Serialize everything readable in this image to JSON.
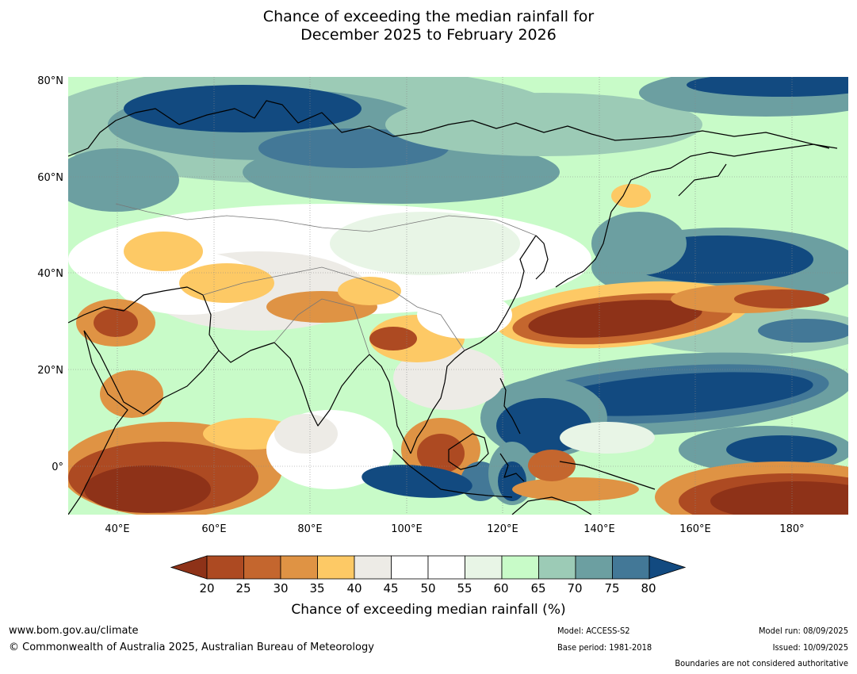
{
  "title": {
    "line1": "Chance of exceeding the median rainfall for",
    "line2": "December 2025 to February 2026"
  },
  "map": {
    "lat_labels": [
      "80°N",
      "60°N",
      "40°N",
      "20°N",
      "0°"
    ],
    "lon_labels": [
      "40°E",
      "60°E",
      "80°E",
      "100°E",
      "120°E",
      "140°E",
      "160°E",
      "180°"
    ],
    "colors": {
      "p15": "#8e3218",
      "p20": "#ad4a22",
      "p25": "#c4662e",
      "p30": "#df9344",
      "p35": "#fdc965",
      "p40": "#edebe6",
      "p45": "#ffffff",
      "p50": "#ffffff",
      "p55": "#e8f5e6",
      "p60": "#c8fbc8",
      "p65": "#9ccbb6",
      "p70": "#6c9fa1",
      "p75": "#437897",
      "p80": "#124a80"
    }
  },
  "colorbar": {
    "ticks": [
      "20",
      "25",
      "30",
      "35",
      "40",
      "45",
      "50",
      "55",
      "60",
      "65",
      "70",
      "75",
      "80"
    ],
    "label": "Chance of exceeding median rainfall (%)"
  },
  "footer": {
    "website": "www.bom.gov.au/climate",
    "copyright": "© Commonwealth of Australia 2025, Australian Bureau of Meteorology",
    "model": "Model: ACCESS-S2",
    "base_period": "Base period: 1981-2018",
    "model_run": "Model run: 08/09/2025",
    "issued": "Issued: 10/09/2025",
    "disclaimer": "Boundaries are not considered authoritative"
  }
}
